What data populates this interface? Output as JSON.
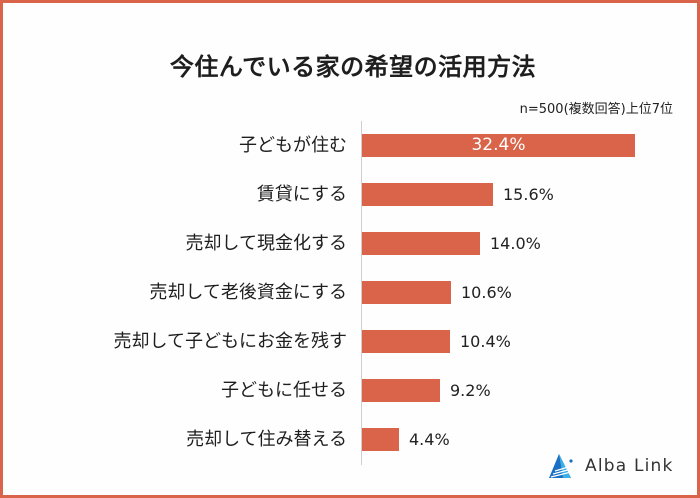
{
  "title": "今住んでいる家の希望の活用方法",
  "subtitle": "n=500(複数回答)上位7位",
  "brand": {
    "name": "Alba Link",
    "icon": "alba-link-logo-icon",
    "colors": [
      "#1a6fc4",
      "#3ab0e6"
    ]
  },
  "colors": {
    "bar": "#d9644a",
    "border": "#d9644a",
    "axis": "#cfcfcf"
  },
  "chart_data": {
    "type": "bar",
    "orientation": "horizontal",
    "title": "今住んでいる家の希望の活用方法",
    "subtitle": "n=500(複数回答)上位7位",
    "xlabel": "",
    "ylabel": "",
    "unit": "%",
    "grid": false,
    "legend": null,
    "categories": [
      "子どもが住む",
      "賃貸にする",
      "売却して現金化する",
      "売却して老後資金にする",
      "売却して子どもにお金を残す",
      "子どもに任せる",
      "売却して住み替える"
    ],
    "values": [
      32.4,
      15.6,
      14.0,
      10.6,
      10.4,
      9.2,
      4.4
    ],
    "value_labels": [
      "32.4%",
      "15.6%",
      "14.0%",
      "10.6%",
      "10.4%",
      "9.2%",
      "4.4%"
    ]
  }
}
